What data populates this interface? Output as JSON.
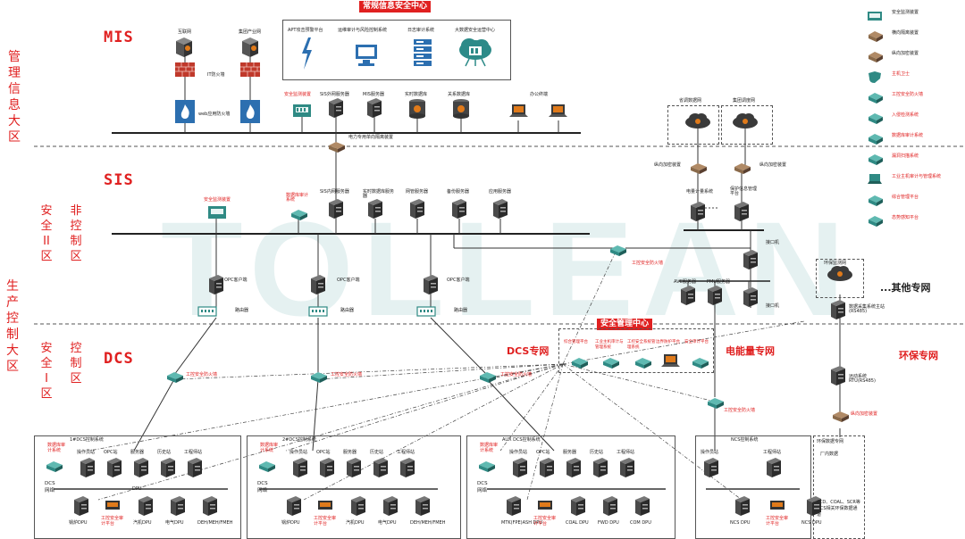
{
  "zones": {
    "mis_zone": "管理信息大区",
    "prod_zone": "生产控制大区",
    "safe2": "安全II区",
    "noncontrol": "非控制区",
    "safe1": "安全I区",
    "control": "控制区"
  },
  "networks": {
    "mis": "MIS",
    "sis": "SIS",
    "dcs": "DCS",
    "dcs_net": "DCS专网",
    "power_net": "电能量专网",
    "env_net": "环保专网",
    "other_net": "...其他专网"
  },
  "banners": {
    "security_center": "常规信息安全中心",
    "mgmt_center": "安全管理中心"
  },
  "watermark": "TOLLEAN",
  "mis": {
    "internet": "互联网",
    "group_net": "集团产业网",
    "it_fw": "IT防火墙",
    "web_fw": "web应用防火墙",
    "apt": "APT攻击预警平台",
    "ops_audit": "运维审计与风险控制系统",
    "log_audit": "日志审计系统",
    "big_data_center": "大数据安全运营中心",
    "monitor_dev": "安全监测装置",
    "sis_ext_server": "SIS外网服务器",
    "mis_server": "MIS服务器",
    "realtime_db": "实时数据库",
    "relational_db": "关系数据库",
    "office_terminal": "办公终端",
    "isolator": "电力专用单向隔离装置"
  },
  "sis": {
    "monitor_dev": "安全监测装置",
    "db_audit": "数据库审计系统",
    "sis_int_server": "SIS内网服务器",
    "rt_db_server": "实时数据库服务器",
    "web_server": "网管服务器",
    "backup_server": "备份服务器",
    "app_server": "应用服务器",
    "opc_client": "OPC客户端",
    "router": "路由器",
    "ind_fw": "工控安全防火墙",
    "province_dispatch": "省调数据网",
    "regional_dispatch": "集团调度网",
    "longitudinal_enc": "纵向加密装置",
    "energy_terminal": "电量计量系统",
    "relay_mgmt": "保护信息管理平台",
    "interface": "接口机",
    "avc": "AVC服务器",
    "pmu": "PMU服务器",
    "env_monitor": "环保监测网",
    "data_collector": "数据采集系统主站(RS485)",
    "remote_rtu": "远动系统RTU(RS485)",
    "env_data": "环保数据专网",
    "plant_side": "厂内数据",
    "env_note": "FCD、COAL、SCR等DCS相关环保数据通道"
  },
  "dcs": {
    "ind_fw": "工控安全防火墙",
    "mgmt_items": [
      "综合管理平台",
      "工业主机审计与管理系统",
      "工控安全系统管理系统",
      "边界防护平台",
      "安全审计平台"
    ],
    "systems": [
      {
        "title": "1#DCS控制系统",
        "net": "DCS网络",
        "audit": "数据库审计系统",
        "nodes": [
          "操作员站",
          "OPC站",
          "服务器",
          "历史站",
          "工程师站"
        ],
        "dpus": [
          "锅炉DPU",
          "工控安全审计平台",
          "汽机DPU",
          "电气DPU",
          "DEH/MEH/FMEH"
        ],
        "dpu_label": "DPU"
      },
      {
        "title": "2#DCS控制系统",
        "net": "DCS网络",
        "audit": "数据库审计系统",
        "nodes": [
          "操作员站",
          "OPC站",
          "服务器",
          "历史站",
          "工程师站"
        ],
        "dpus": [
          "锅炉DPU",
          "工控安全审计平台",
          "汽机DPU",
          "电气DPU",
          "DEH/MEH/FMEH"
        ],
        "dpu_label": ""
      },
      {
        "title": "AUX DCS控制系统",
        "net": "DCS网络",
        "audit": "数据库审计系统",
        "nodes": [
          "操作员站",
          "OPC站",
          "服务器",
          "历史站",
          "工程师站"
        ],
        "dpus": [
          "MTK(FPE)ASH DPU",
          "工控安全审计平台",
          "COAL DPU",
          "FWD DPU",
          "COM DPU"
        ],
        "dpu_label": ""
      },
      {
        "title": "NCS控制系统",
        "net": "",
        "audit": "",
        "nodes": [
          "操作员站",
          "工程师站"
        ],
        "dpus": [
          "NCS DPU",
          "工控安全审计平台",
          "NCS DPU"
        ],
        "dpu_label": ""
      }
    ]
  },
  "legend": [
    {
      "icon": "monitor-device-icon",
      "label": "安全监测装置",
      "red": false
    },
    {
      "icon": "isolator-icon",
      "label": "横向隔离装置",
      "red": false
    },
    {
      "icon": "encryptor-icon",
      "label": "纵向加密装置",
      "red": false
    },
    {
      "icon": "shield-icon",
      "label": "主机卫士",
      "red": true
    },
    {
      "icon": "firewall-icon",
      "label": "工控安全防火墙",
      "red": true
    },
    {
      "icon": "ids-icon",
      "label": "入侵检测系统",
      "red": true
    },
    {
      "icon": "audit-icon",
      "label": "数据库审计系统",
      "red": true
    },
    {
      "icon": "vuln-icon",
      "label": "漏洞扫描系统",
      "red": true
    },
    {
      "icon": "laptop-icon",
      "label": "工业主机审计与管理系统",
      "red": true
    },
    {
      "icon": "mgmt-icon",
      "label": "综合管理平台",
      "red": true
    },
    {
      "icon": "situation-icon",
      "label": "态势感知平台",
      "red": true
    }
  ],
  "colors": {
    "accent": "#e02020",
    "device_dark": "#4a4a4a",
    "device_teal": "#2f8a84",
    "device_brown": "#8a6a4a",
    "watermark": "#5faaa5"
  }
}
